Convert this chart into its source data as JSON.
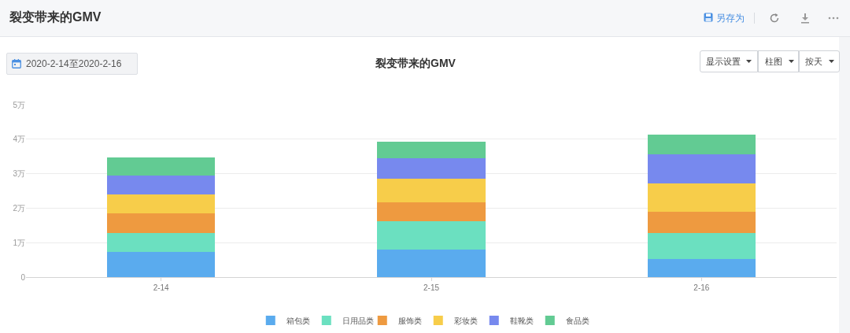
{
  "chart_data": {
    "type": "bar",
    "title": "裂变带来的GMV",
    "annotations": [
      "裂变带来的GMV",
      "另存为",
      "2020-2-14至2020-2-16",
      "显示设置",
      "柱图",
      "按天"
    ],
    "categories": [
      "2-14",
      "2-15",
      "2-16"
    ],
    "series": [
      {
        "name": "箱包类",
        "color": "#5aabee",
        "values": [
          0.72,
          0.8,
          0.53
        ]
      },
      {
        "name": "日用品类",
        "color": "#6be0c0",
        "values": [
          0.57,
          0.83,
          0.74
        ]
      },
      {
        "name": "服饰类",
        "color": "#ee9a40",
        "values": [
          0.55,
          0.55,
          0.63
        ]
      },
      {
        "name": "彩妆类",
        "color": "#f7cd4a",
        "values": [
          0.56,
          0.68,
          0.82
        ]
      },
      {
        "name": "鞋靴类",
        "color": "#7789ee",
        "values": [
          0.55,
          0.59,
          0.84
        ]
      },
      {
        "name": "食品类",
        "color": "#62cb93",
        "values": [
          0.53,
          0.47,
          0.58
        ]
      }
    ],
    "stacked": true,
    "ylim": [
      0,
      5
    ],
    "yticks": [
      0,
      {
        "value": 1,
        "label": "1万"
      },
      {
        "value": 2,
        "label": "2万"
      },
      {
        "value": 3,
        "label": "3万"
      },
      {
        "value": 4,
        "label": "4万"
      },
      {
        "value": 5,
        "label": "5万"
      }
    ],
    "grid": "y",
    "legend": "bottom"
  }
}
